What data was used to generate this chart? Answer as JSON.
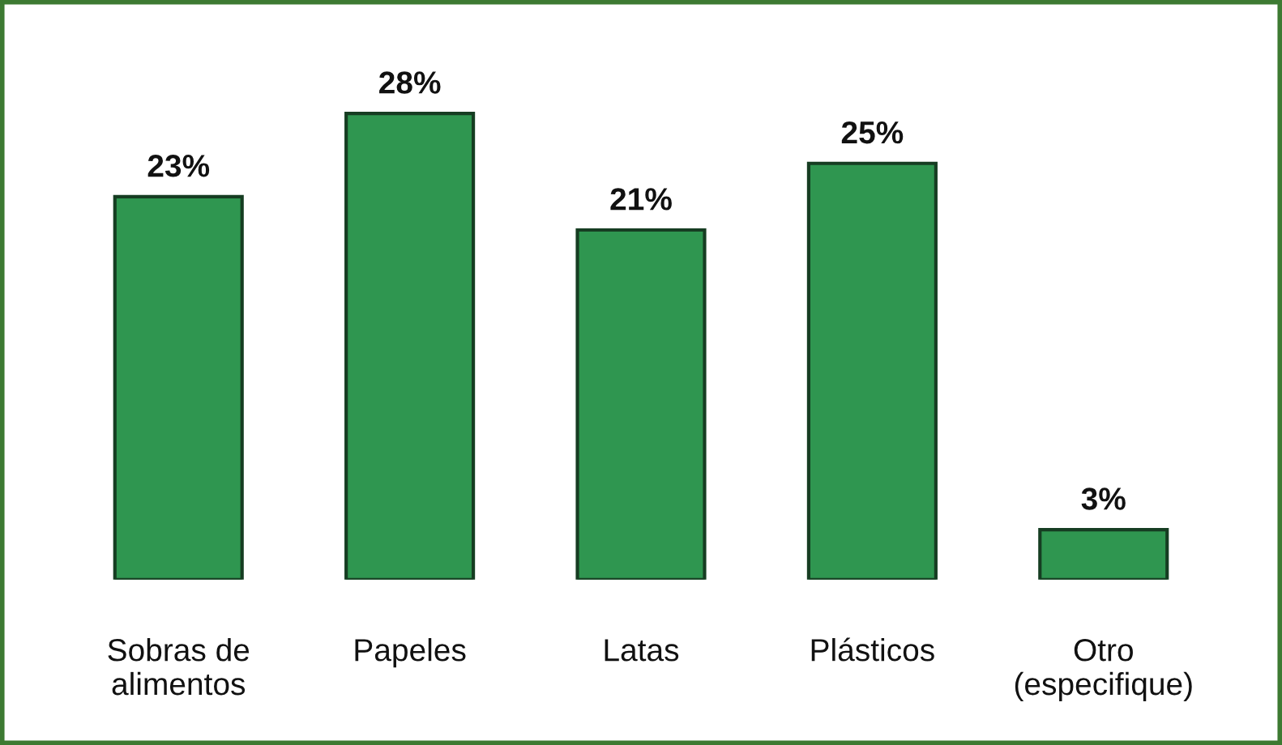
{
  "chart_data": {
    "type": "bar",
    "categories": [
      "Sobras de\nalimentos",
      "Papeles",
      "Latas",
      "Plásticos",
      "Otro\n(especifique)"
    ],
    "values": [
      23,
      28,
      21,
      25,
      3
    ],
    "value_labels": [
      "23%",
      "28%",
      "21%",
      "25%",
      "3%"
    ],
    "color": "#2f9650",
    "grid": false,
    "legend": false
  }
}
